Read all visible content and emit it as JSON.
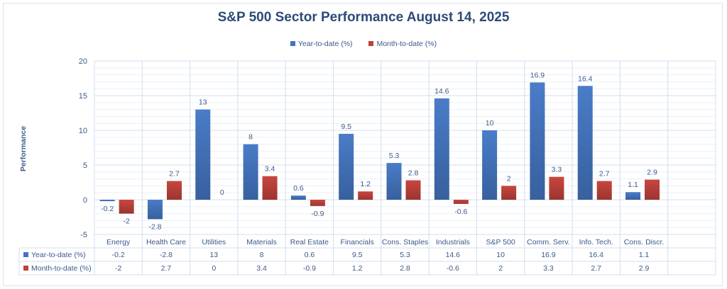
{
  "chart_data": {
    "type": "bar",
    "title": "S&P 500 Sector Performance August 14, 2025",
    "xlabel": "",
    "ylabel": "Performance",
    "ylim": [
      -5,
      20
    ],
    "yticks": [
      -5,
      0,
      5,
      10,
      15,
      20
    ],
    "grid": true,
    "legend_position": "top-center",
    "categories": [
      "Energy",
      "Health Care",
      "Utilities",
      "Materials",
      "Real Estate",
      "Financials",
      "Cons. Staples",
      "Industrials",
      "S&P 500",
      "Comm. Serv.",
      "Info. Tech.",
      "Cons. Discr.",
      ""
    ],
    "series": [
      {
        "name": "Year-to-date (%)",
        "color": "#4472c4",
        "values": [
          -0.2,
          -2.8,
          13,
          8,
          0.6,
          9.5,
          5.3,
          14.6,
          10,
          16.9,
          16.4,
          1.1,
          null
        ]
      },
      {
        "name": "Month-to-date (%)",
        "color": "#c0403a",
        "values": [
          -2,
          2.7,
          0,
          3.4,
          -0.9,
          1.2,
          2.8,
          -0.6,
          2,
          3.3,
          2.7,
          2.9,
          null
        ]
      }
    ],
    "data_table": true
  }
}
